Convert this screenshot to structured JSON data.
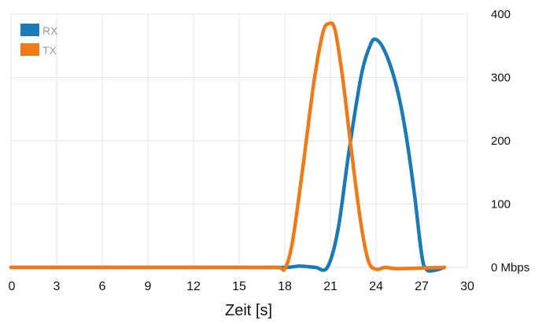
{
  "chart_data": {
    "type": "line",
    "xlabel": "Zeit [s]",
    "ylabel": "",
    "xlim": [
      0,
      30
    ],
    "ylim": [
      0,
      400
    ],
    "x_ticks": [
      "0",
      "3",
      "6",
      "9",
      "12",
      "15",
      "18",
      "21",
      "24",
      "27",
      "30"
    ],
    "y_ticks": [
      "0 Mbps",
      "100",
      "200",
      "300",
      "400"
    ],
    "grid": true,
    "legend_position": "top-left",
    "series": [
      {
        "name": "RX",
        "color": "#1a7ab8",
        "points": [
          [
            0,
            0
          ],
          [
            15,
            0
          ],
          [
            18,
            0
          ],
          [
            19,
            2
          ],
          [
            20,
            0
          ],
          [
            20.8,
            0
          ],
          [
            21.5,
            60
          ],
          [
            22.2,
            180
          ],
          [
            23,
            300
          ],
          [
            23.6,
            350
          ],
          [
            24,
            360
          ],
          [
            24.6,
            340
          ],
          [
            25.3,
            290
          ],
          [
            25.9,
            220
          ],
          [
            26.5,
            120
          ],
          [
            27,
            20
          ],
          [
            27.3,
            -3
          ],
          [
            27.8,
            -5
          ],
          [
            28.5,
            0
          ]
        ]
      },
      {
        "name": "TX",
        "color": "#ef7a1a",
        "points": [
          [
            0,
            0
          ],
          [
            15,
            0
          ],
          [
            17.5,
            0
          ],
          [
            18,
            -2
          ],
          [
            18.5,
            40
          ],
          [
            19.2,
            160
          ],
          [
            19.9,
            290
          ],
          [
            20.5,
            370
          ],
          [
            20.9,
            385
          ],
          [
            21.3,
            375
          ],
          [
            21.8,
            300
          ],
          [
            22.4,
            180
          ],
          [
            23,
            70
          ],
          [
            23.5,
            10
          ],
          [
            24,
            -3
          ],
          [
            24.6,
            0
          ],
          [
            25.5,
            -2
          ],
          [
            28.5,
            0
          ]
        ]
      }
    ]
  }
}
